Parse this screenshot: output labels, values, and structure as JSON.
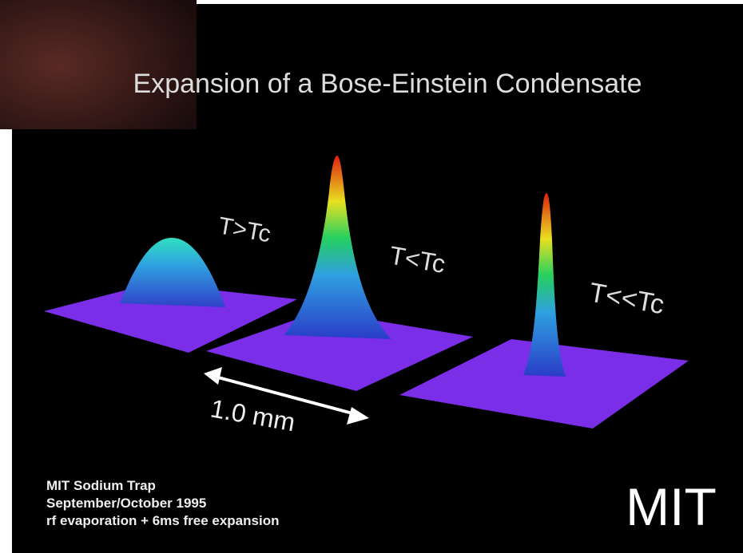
{
  "title": "Expansion of a Bose-Einstein Condensate",
  "peaks": [
    {
      "label": "T>Tc"
    },
    {
      "label": "T<Tc"
    },
    {
      "label": "T<<Tc"
    }
  ],
  "scale_label": "1.0 mm",
  "caption": [
    "MIT Sodium Trap",
    "September/October 1995",
    "rf evaporation + 6ms free expansion"
  ],
  "logo": "MIT"
}
